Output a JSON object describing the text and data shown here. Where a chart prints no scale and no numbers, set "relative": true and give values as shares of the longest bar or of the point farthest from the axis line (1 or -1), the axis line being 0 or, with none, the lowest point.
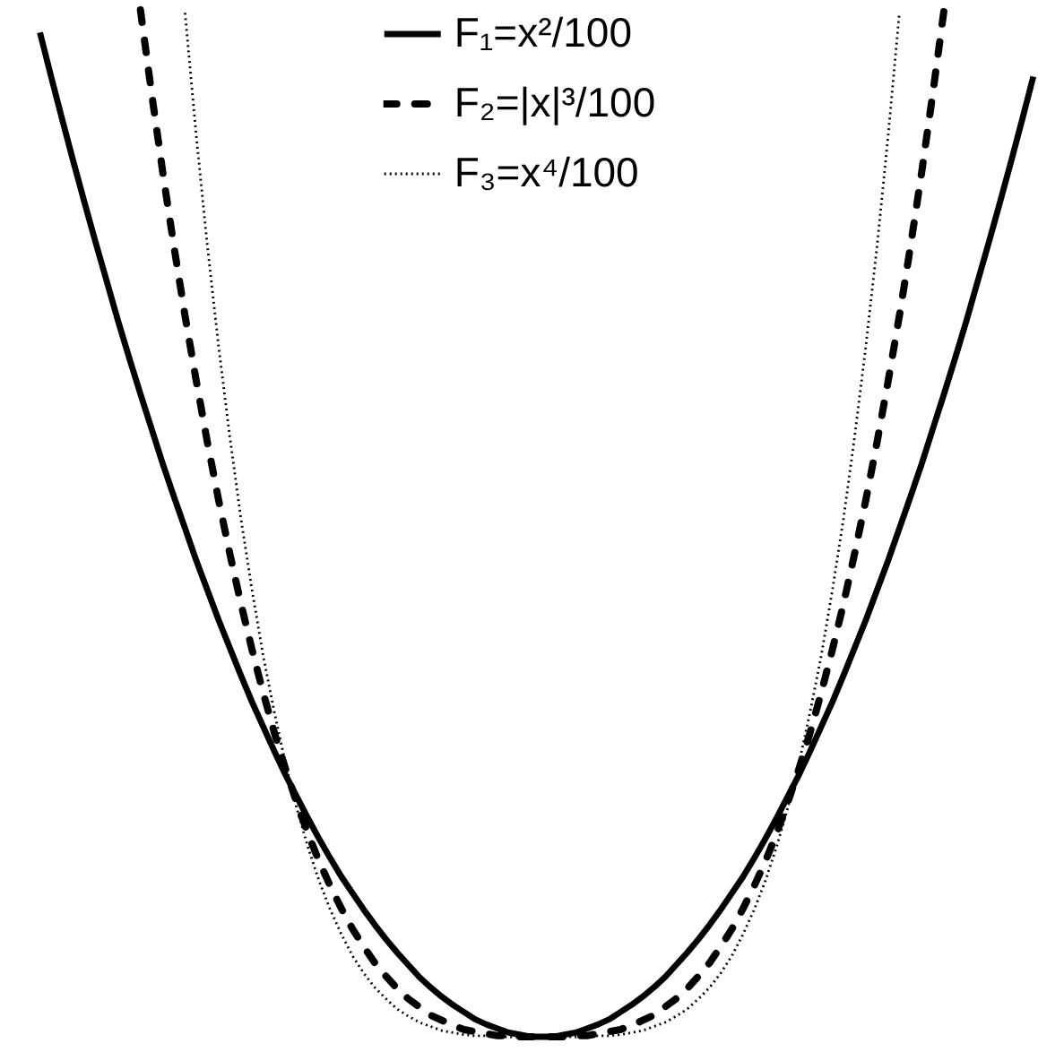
{
  "chart_data": {
    "type": "line",
    "relative": true,
    "grid": false,
    "legend": "top",
    "categories": [
      null,
      null,
      null,
      null,
      null,
      null,
      null,
      null,
      null,
      null,
      null,
      null,
      null,
      null,
      null,
      null,
      null,
      null,
      null,
      null,
      null,
      null,
      null,
      null,
      null,
      null,
      null,
      null,
      null,
      null,
      null,
      null,
      null,
      null,
      null,
      null,
      null,
      null,
      null,
      null,
      null,
      null,
      null,
      null,
      null,
      null,
      null,
      null,
      null,
      null,
      null,
      null,
      null,
      null,
      null,
      null,
      null,
      null,
      null,
      null,
      null,
      null,
      null,
      null,
      null,
      null,
      null,
      null,
      null,
      null,
      null,
      null,
      null,
      null,
      null,
      null,
      null,
      null,
      null,
      null,
      null,
      null,
      null,
      null,
      null,
      null,
      null,
      null,
      null,
      null,
      null,
      null,
      null
    ],
    "series": [
      {
        "name": "F₁=x²/100",
        "color": "#000000",
        "line_style": "solid",
        "values": [
          null,
          null,
          null,
          0.978,
          0.935,
          0.893,
          0.852,
          0.812,
          0.773,
          0.735,
          0.697,
          0.661,
          0.626,
          0.592,
          0.558,
          0.526,
          0.495,
          0.464,
          0.435,
          0.406,
          0.379,
          0.352,
          0.326,
          0.302,
          0.278,
          0.255,
          0.234,
          0.213,
          0.193,
          0.174,
          0.156,
          0.14,
          0.124,
          0.109,
          0.095,
          0.082,
          0.07,
          0.058,
          0.048,
          0.039,
          0.031,
          0.024,
          0.017,
          0.012,
          0.008,
          0.004,
          0.002,
          0.0,
          0,
          0.0,
          0.002,
          0.004,
          0.008,
          0.012,
          0.017,
          0.024,
          0.031,
          0.039,
          0.048,
          0.058,
          0.07,
          0.082,
          0.095,
          0.109,
          0.124,
          0.14,
          0.156,
          0.174,
          0.193,
          0.213,
          0.234,
          0.255,
          0.278,
          0.302,
          0.326,
          0.352,
          0.379,
          0.406,
          0.435,
          0.464,
          0.495,
          0.526,
          0.558,
          0.592,
          0.626,
          0.661,
          0.697,
          0.735,
          0.773,
          0.812,
          0.852,
          0.893,
          0.935
        ]
      },
      {
        "name": "F₂=|x|³/100",
        "color": "#000000",
        "line_style": "dashed",
        "values": [
          null,
          null,
          null,
          null,
          null,
          null,
          null,
          null,
          null,
          null,
          null,
          null,
          1.0,
          0.919,
          0.842,
          0.77,
          0.702,
          0.639,
          0.579,
          0.523,
          0.471,
          0.422,
          0.377,
          0.335,
          0.296,
          0.261,
          0.228,
          0.198,
          0.171,
          0.147,
          0.125,
          0.105,
          0.088,
          0.072,
          0.059,
          0.047,
          0.037,
          0.029,
          0.021,
          0.016,
          0.011,
          0.007,
          0.005,
          0.003,
          0.001,
          0.001,
          0.0,
          0.0,
          0,
          0.0,
          0.0,
          0.001,
          0.001,
          0.003,
          0.005,
          0.007,
          0.011,
          0.016,
          0.021,
          0.029,
          0.037,
          0.047,
          0.059,
          0.072,
          0.088,
          0.105,
          0.125,
          0.147,
          0.171,
          0.198,
          0.228,
          0.261,
          0.296,
          0.335,
          0.377,
          0.422,
          0.471,
          0.523,
          0.579,
          0.639,
          0.702,
          0.77,
          0.842,
          0.919,
          1.0,
          null,
          null,
          null,
          null,
          null,
          null,
          null,
          null
        ]
      },
      {
        "name": "F₃=x⁴/100",
        "color": "#000000",
        "line_style": "dotted",
        "values": [
          null,
          null,
          null,
          null,
          null,
          null,
          null,
          null,
          null,
          null,
          null,
          null,
          null,
          null,
          null,
          null,
          0.997,
          0.878,
          0.77,
          0.673,
          0.585,
          0.505,
          0.435,
          0.371,
          0.316,
          0.266,
          0.223,
          0.185,
          0.152,
          0.124,
          0.1,
          0.079,
          0.062,
          0.048,
          0.037,
          0.027,
          0.02,
          0.014,
          0.01,
          0.006,
          0.004,
          0.002,
          0.001,
          0.001,
          0.0,
          0.0,
          0.0,
          0.0,
          0,
          0.0,
          0.0,
          0.0,
          0.0,
          0.001,
          0.001,
          0.002,
          0.004,
          0.006,
          0.01,
          0.014,
          0.02,
          0.027,
          0.037,
          0.048,
          0.062,
          0.079,
          0.1,
          0.124,
          0.152,
          0.185,
          0.223,
          0.266,
          0.316,
          0.371,
          0.435,
          0.505,
          0.585,
          0.673,
          0.77,
          0.878,
          0.997,
          null,
          null,
          null,
          null,
          null,
          null,
          null,
          null,
          null,
          null,
          null,
          null
        ]
      }
    ]
  }
}
